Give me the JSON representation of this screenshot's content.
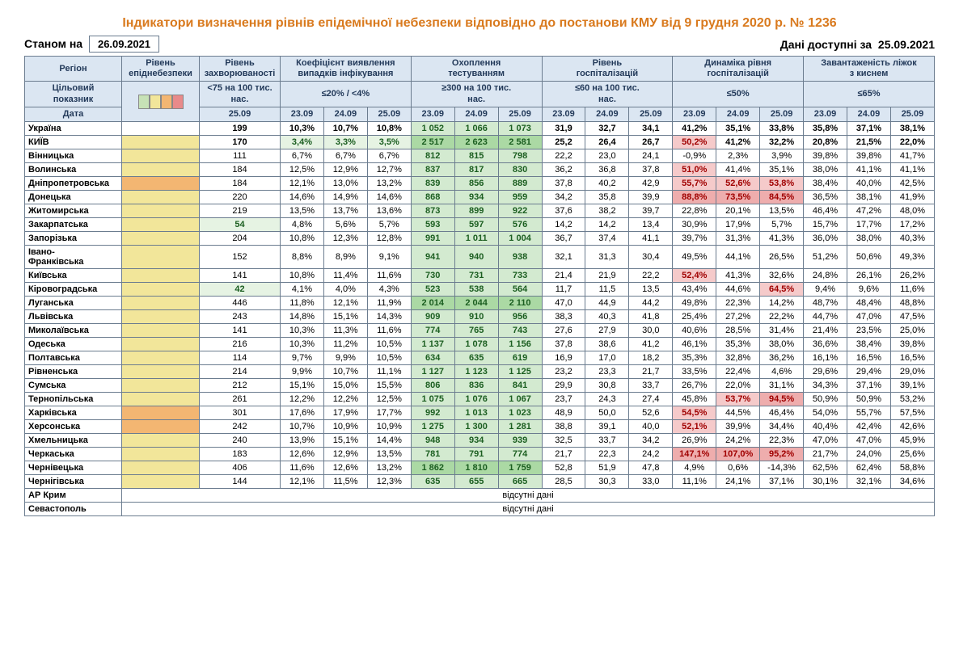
{
  "title": "Індикатори визначення рівнів епідемічної небезпеки відповідно до постанови КМУ від 9 грудня 2020 р. № 1236",
  "as_of_label": "Станом на",
  "as_of_date": "26.09.2021",
  "avail_label": "Дані доступні за",
  "avail_date": "25.09.2021",
  "headers": {
    "region": "Регіон",
    "risk": "Рівень\nепіднебезпеки",
    "incidence": "Рівень\nзахворюваності",
    "detection": "Коефіцієнт виявлення\nвипадків інфікування",
    "testing": "Охоплення\nтестуванням",
    "hosp": "Рівень\nгоспіталізацій",
    "hosp_dyn": "Динаміка рівня\nгоспіталізацій",
    "oxygen": "Завантаженість ліжок\nз киснем",
    "target": "Цільовий\nпоказник",
    "date": "Дата",
    "incidence_target": "<75 на 100 тис.\nнас.",
    "detection_target": "≤20% / <4%",
    "testing_target": "≥300 на 100 тис.\nнас.",
    "hosp_target": "≤60 на 100 тис.\nнас.",
    "hosp_dyn_target": "≤50%",
    "oxygen_target": "≤65%",
    "d_incid": "25.09",
    "d1": "23.09",
    "d2": "24.09",
    "d3": "25.09"
  },
  "legend_colors": [
    "#c7e2b6",
    "#f2e69a",
    "#f3b672",
    "#e88a8a"
  ],
  "no_data": "відсутні дані",
  "rows": [
    {
      "name": "Україна",
      "bold": true,
      "risk": "",
      "incid": "199",
      "det": [
        "10,3%",
        "10,7%",
        "10,8%"
      ],
      "test": [
        "1 052",
        "1 066",
        "1 073"
      ],
      "test_c": [
        "g",
        "g",
        "g"
      ],
      "hosp": [
        "31,9",
        "32,7",
        "34,1"
      ],
      "dyn": [
        "41,2%",
        "35,1%",
        "33,8%"
      ],
      "oxy": [
        "35,8%",
        "37,1%",
        "38,1%"
      ]
    },
    {
      "name": "КИЇВ",
      "bold": true,
      "risk": "yellow",
      "incid": "170",
      "det": [
        "3,4%",
        "3,3%",
        "3,5%"
      ],
      "det_c": [
        "gl",
        "gl",
        "gl"
      ],
      "test": [
        "2 517",
        "2 623",
        "2 581"
      ],
      "test_c": [
        "gd",
        "gd",
        "gd"
      ],
      "hosp": [
        "25,2",
        "26,4",
        "26,7"
      ],
      "dyn": [
        "50,2%",
        "41,2%",
        "32,2%"
      ],
      "dyn_c": [
        "p",
        "",
        ""
      ],
      "oxy": [
        "20,8%",
        "21,5%",
        "22,0%"
      ]
    },
    {
      "name": "Вінницька",
      "risk": "yellow",
      "incid": "111",
      "det": [
        "6,7%",
        "6,7%",
        "6,7%"
      ],
      "test": [
        "812",
        "815",
        "798"
      ],
      "test_c": [
        "g",
        "g",
        "g"
      ],
      "hosp": [
        "22,2",
        "23,0",
        "24,1"
      ],
      "dyn": [
        "-0,9%",
        "2,3%",
        "3,9%"
      ],
      "oxy": [
        "39,8%",
        "39,8%",
        "41,7%"
      ]
    },
    {
      "name": "Волинська",
      "risk": "yellow",
      "incid": "184",
      "det": [
        "12,5%",
        "12,9%",
        "12,7%"
      ],
      "test": [
        "837",
        "817",
        "830"
      ],
      "test_c": [
        "g",
        "g",
        "g"
      ],
      "hosp": [
        "36,2",
        "36,8",
        "37,8"
      ],
      "dyn": [
        "51,0%",
        "41,4%",
        "35,1%"
      ],
      "dyn_c": [
        "p",
        "",
        ""
      ],
      "oxy": [
        "38,0%",
        "41,1%",
        "41,1%"
      ]
    },
    {
      "name": "Дніпропетровська",
      "risk": "orange",
      "incid": "184",
      "det": [
        "12,1%",
        "13,0%",
        "13,2%"
      ],
      "test": [
        "839",
        "856",
        "889"
      ],
      "test_c": [
        "g",
        "g",
        "g"
      ],
      "hosp": [
        "37,8",
        "40,2",
        "42,9"
      ],
      "dyn": [
        "55,7%",
        "52,6%",
        "53,8%"
      ],
      "dyn_c": [
        "p",
        "p",
        "p"
      ],
      "oxy": [
        "38,4%",
        "40,0%",
        "42,5%"
      ]
    },
    {
      "name": "Донецька",
      "risk": "yellow",
      "incid": "220",
      "det": [
        "14,6%",
        "14,9%",
        "14,6%"
      ],
      "test": [
        "868",
        "934",
        "959"
      ],
      "test_c": [
        "g",
        "g",
        "g"
      ],
      "hosp": [
        "34,2",
        "35,8",
        "39,9"
      ],
      "dyn": [
        "88,8%",
        "73,5%",
        "84,5%"
      ],
      "dyn_c": [
        "pd",
        "pd",
        "pd"
      ],
      "oxy": [
        "36,5%",
        "38,1%",
        "41,9%"
      ]
    },
    {
      "name": "Житомирська",
      "risk": "yellow",
      "incid": "219",
      "det": [
        "13,5%",
        "13,7%",
        "13,6%"
      ],
      "test": [
        "873",
        "899",
        "922"
      ],
      "test_c": [
        "g",
        "g",
        "g"
      ],
      "hosp": [
        "37,6",
        "38,2",
        "39,7"
      ],
      "dyn": [
        "22,8%",
        "20,1%",
        "13,5%"
      ],
      "oxy": [
        "46,4%",
        "47,2%",
        "48,0%"
      ]
    },
    {
      "name": "Закарпатська",
      "risk": "yellow",
      "incid": "54",
      "incid_c": "gl",
      "det": [
        "4,8%",
        "5,6%",
        "5,7%"
      ],
      "test": [
        "593",
        "597",
        "576"
      ],
      "test_c": [
        "g",
        "g",
        "g"
      ],
      "hosp": [
        "14,2",
        "14,2",
        "13,4"
      ],
      "dyn": [
        "30,9%",
        "17,9%",
        "5,7%"
      ],
      "oxy": [
        "15,7%",
        "17,7%",
        "17,2%"
      ]
    },
    {
      "name": "Запорізька",
      "risk": "yellow",
      "incid": "204",
      "det": [
        "10,8%",
        "12,3%",
        "12,8%"
      ],
      "test": [
        "991",
        "1 011",
        "1 004"
      ],
      "test_c": [
        "g",
        "g",
        "g"
      ],
      "hosp": [
        "36,7",
        "37,4",
        "41,1"
      ],
      "dyn": [
        "39,7%",
        "31,3%",
        "41,3%"
      ],
      "oxy": [
        "36,0%",
        "38,0%",
        "40,3%"
      ]
    },
    {
      "name": "Івано-\nФранківська",
      "risk": "yellow",
      "incid": "152",
      "det": [
        "8,8%",
        "8,9%",
        "9,1%"
      ],
      "test": [
        "941",
        "940",
        "938"
      ],
      "test_c": [
        "g",
        "g",
        "g"
      ],
      "hosp": [
        "32,1",
        "31,3",
        "30,4"
      ],
      "dyn": [
        "49,5%",
        "44,1%",
        "26,5%"
      ],
      "oxy": [
        "51,2%",
        "50,6%",
        "49,3%"
      ]
    },
    {
      "name": "Київська",
      "risk": "yellow",
      "incid": "141",
      "det": [
        "10,8%",
        "11,4%",
        "11,6%"
      ],
      "test": [
        "730",
        "731",
        "733"
      ],
      "test_c": [
        "g",
        "g",
        "g"
      ],
      "hosp": [
        "21,4",
        "21,9",
        "22,2"
      ],
      "dyn": [
        "52,4%",
        "41,3%",
        "32,6%"
      ],
      "dyn_c": [
        "p",
        "",
        ""
      ],
      "oxy": [
        "24,8%",
        "26,1%",
        "26,2%"
      ]
    },
    {
      "name": "Кіровоградська",
      "risk": "yellow",
      "incid": "42",
      "incid_c": "gl",
      "det": [
        "4,1%",
        "4,0%",
        "4,3%"
      ],
      "test": [
        "523",
        "538",
        "564"
      ],
      "test_c": [
        "g",
        "g",
        "g"
      ],
      "hosp": [
        "11,7",
        "11,5",
        "13,5"
      ],
      "dyn": [
        "43,4%",
        "44,6%",
        "64,5%"
      ],
      "dyn_c": [
        "",
        "",
        "p"
      ],
      "oxy": [
        "9,4%",
        "9,6%",
        "11,6%"
      ]
    },
    {
      "name": "Луганська",
      "risk": "yellow",
      "incid": "446",
      "det": [
        "11,8%",
        "12,1%",
        "11,9%"
      ],
      "test": [
        "2 014",
        "2 044",
        "2 110"
      ],
      "test_c": [
        "gd",
        "gd",
        "gd"
      ],
      "hosp": [
        "47,0",
        "44,9",
        "44,2"
      ],
      "dyn": [
        "49,8%",
        "22,3%",
        "14,2%"
      ],
      "oxy": [
        "48,7%",
        "48,4%",
        "48,8%"
      ]
    },
    {
      "name": "Львівська",
      "risk": "yellow",
      "incid": "243",
      "det": [
        "14,8%",
        "15,1%",
        "14,3%"
      ],
      "test": [
        "909",
        "910",
        "956"
      ],
      "test_c": [
        "g",
        "g",
        "g"
      ],
      "hosp": [
        "38,3",
        "40,3",
        "41,8"
      ],
      "dyn": [
        "25,4%",
        "27,2%",
        "22,2%"
      ],
      "oxy": [
        "44,7%",
        "47,0%",
        "47,5%"
      ]
    },
    {
      "name": "Миколаївська",
      "risk": "yellow",
      "incid": "141",
      "det": [
        "10,3%",
        "11,3%",
        "11,6%"
      ],
      "test": [
        "774",
        "765",
        "743"
      ],
      "test_c": [
        "g",
        "g",
        "g"
      ],
      "hosp": [
        "27,6",
        "27,9",
        "30,0"
      ],
      "dyn": [
        "40,6%",
        "28,5%",
        "31,4%"
      ],
      "oxy": [
        "21,4%",
        "23,5%",
        "25,0%"
      ]
    },
    {
      "name": "Одеська",
      "risk": "yellow",
      "incid": "216",
      "det": [
        "10,3%",
        "11,2%",
        "10,5%"
      ],
      "test": [
        "1 137",
        "1 078",
        "1 156"
      ],
      "test_c": [
        "g",
        "g",
        "g"
      ],
      "hosp": [
        "37,8",
        "38,6",
        "41,2"
      ],
      "dyn": [
        "46,1%",
        "35,3%",
        "38,0%"
      ],
      "oxy": [
        "36,6%",
        "38,4%",
        "39,8%"
      ]
    },
    {
      "name": "Полтавська",
      "risk": "yellow",
      "incid": "114",
      "det": [
        "9,7%",
        "9,9%",
        "10,5%"
      ],
      "test": [
        "634",
        "635",
        "619"
      ],
      "test_c": [
        "g",
        "g",
        "g"
      ],
      "hosp": [
        "16,9",
        "17,0",
        "18,2"
      ],
      "dyn": [
        "35,3%",
        "32,8%",
        "36,2%"
      ],
      "oxy": [
        "16,1%",
        "16,5%",
        "16,5%"
      ]
    },
    {
      "name": "Рівненська",
      "risk": "yellow",
      "incid": "214",
      "det": [
        "9,9%",
        "10,7%",
        "11,1%"
      ],
      "test": [
        "1 127",
        "1 123",
        "1 125"
      ],
      "test_c": [
        "g",
        "g",
        "g"
      ],
      "hosp": [
        "23,2",
        "23,3",
        "21,7"
      ],
      "dyn": [
        "33,5%",
        "22,4%",
        "4,6%"
      ],
      "oxy": [
        "29,6%",
        "29,4%",
        "29,0%"
      ]
    },
    {
      "name": "Сумська",
      "risk": "yellow",
      "incid": "212",
      "det": [
        "15,1%",
        "15,0%",
        "15,5%"
      ],
      "test": [
        "806",
        "836",
        "841"
      ],
      "test_c": [
        "g",
        "g",
        "g"
      ],
      "hosp": [
        "29,9",
        "30,8",
        "33,7"
      ],
      "dyn": [
        "26,7%",
        "22,0%",
        "31,1%"
      ],
      "oxy": [
        "34,3%",
        "37,1%",
        "39,1%"
      ]
    },
    {
      "name": "Тернопільська",
      "risk": "yellow",
      "incid": "261",
      "det": [
        "12,2%",
        "12,2%",
        "12,5%"
      ],
      "test": [
        "1 075",
        "1 076",
        "1 067"
      ],
      "test_c": [
        "g",
        "g",
        "g"
      ],
      "hosp": [
        "23,7",
        "24,3",
        "27,4"
      ],
      "dyn": [
        "45,8%",
        "53,7%",
        "94,5%"
      ],
      "dyn_c": [
        "",
        "p",
        "pd"
      ],
      "oxy": [
        "50,9%",
        "50,9%",
        "53,2%"
      ]
    },
    {
      "name": "Харківська",
      "risk": "orange",
      "incid": "301",
      "det": [
        "17,6%",
        "17,9%",
        "17,7%"
      ],
      "test": [
        "992",
        "1 013",
        "1 023"
      ],
      "test_c": [
        "g",
        "g",
        "g"
      ],
      "hosp": [
        "48,9",
        "50,0",
        "52,6"
      ],
      "dyn": [
        "54,5%",
        "44,5%",
        "46,4%"
      ],
      "dyn_c": [
        "p",
        "",
        ""
      ],
      "oxy": [
        "54,0%",
        "55,7%",
        "57,5%"
      ]
    },
    {
      "name": "Херсонська",
      "risk": "orange",
      "incid": "242",
      "det": [
        "10,7%",
        "10,9%",
        "10,9%"
      ],
      "test": [
        "1 275",
        "1 300",
        "1 281"
      ],
      "test_c": [
        "g",
        "g",
        "g"
      ],
      "hosp": [
        "38,8",
        "39,1",
        "40,0"
      ],
      "dyn": [
        "52,1%",
        "39,9%",
        "34,4%"
      ],
      "dyn_c": [
        "p",
        "",
        ""
      ],
      "oxy": [
        "40,4%",
        "42,4%",
        "42,6%"
      ]
    },
    {
      "name": "Хмельницька",
      "risk": "yellow",
      "incid": "240",
      "det": [
        "13,9%",
        "15,1%",
        "14,4%"
      ],
      "test": [
        "948",
        "934",
        "939"
      ],
      "test_c": [
        "g",
        "g",
        "g"
      ],
      "hosp": [
        "32,5",
        "33,7",
        "34,2"
      ],
      "dyn": [
        "26,9%",
        "24,2%",
        "22,3%"
      ],
      "oxy": [
        "47,0%",
        "47,0%",
        "45,9%"
      ]
    },
    {
      "name": "Черкаська",
      "risk": "yellow",
      "incid": "183",
      "det": [
        "12,6%",
        "12,9%",
        "13,5%"
      ],
      "test": [
        "781",
        "791",
        "774"
      ],
      "test_c": [
        "g",
        "g",
        "g"
      ],
      "hosp": [
        "21,7",
        "22,3",
        "24,2"
      ],
      "dyn": [
        "147,1%",
        "107,0%",
        "95,2%"
      ],
      "dyn_c": [
        "pd",
        "pd",
        "pd"
      ],
      "oxy": [
        "21,7%",
        "24,0%",
        "25,6%"
      ]
    },
    {
      "name": "Чернівецька",
      "risk": "yellow",
      "incid": "406",
      "det": [
        "11,6%",
        "12,6%",
        "13,2%"
      ],
      "test": [
        "1 862",
        "1 810",
        "1 759"
      ],
      "test_c": [
        "gd",
        "gd",
        "gd"
      ],
      "hosp": [
        "52,8",
        "51,9",
        "47,8"
      ],
      "dyn": [
        "4,9%",
        "0,6%",
        "-14,3%"
      ],
      "oxy": [
        "62,5%",
        "62,4%",
        "58,8%"
      ]
    },
    {
      "name": "Чернігівська",
      "risk": "yellow",
      "incid": "144",
      "det": [
        "12,1%",
        "11,5%",
        "12,3%"
      ],
      "test": [
        "635",
        "655",
        "665"
      ],
      "test_c": [
        "g",
        "g",
        "g"
      ],
      "hosp": [
        "28,5",
        "30,3",
        "33,0"
      ],
      "dyn": [
        "11,1%",
        "24,1%",
        "37,1%"
      ],
      "oxy": [
        "30,1%",
        "32,1%",
        "34,6%"
      ]
    }
  ],
  "empty_rows": [
    "АР Крим",
    "Севастополь"
  ]
}
